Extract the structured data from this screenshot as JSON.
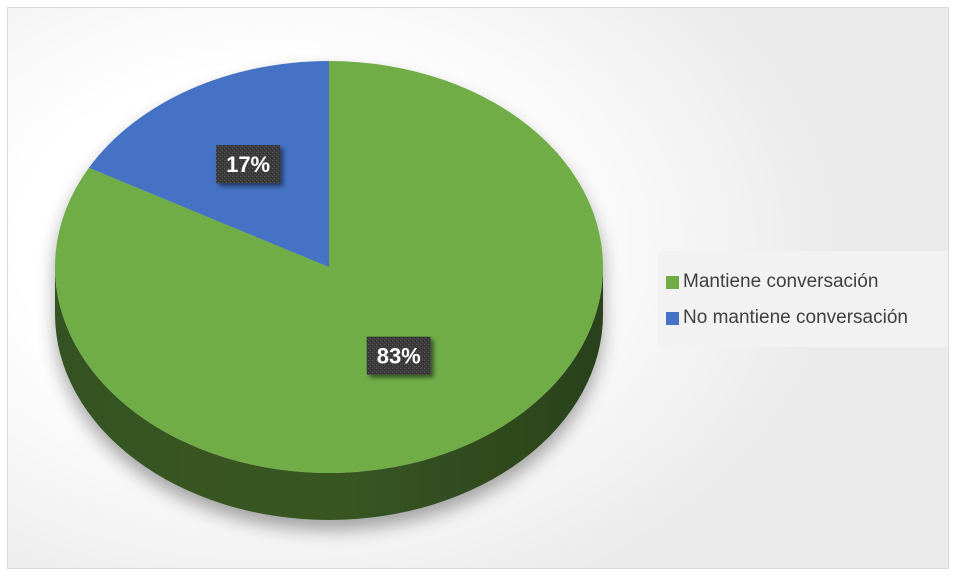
{
  "chart_data": {
    "type": "pie",
    "title": "",
    "style": "3d",
    "legend_position": "right",
    "slices": [
      {
        "label": "Mantiene conversación",
        "value": 83,
        "display": "83%",
        "color": "#70ad47"
      },
      {
        "label": "No mantiene conversación",
        "value": 17,
        "display": "17%",
        "color": "#4472c4"
      }
    ]
  }
}
